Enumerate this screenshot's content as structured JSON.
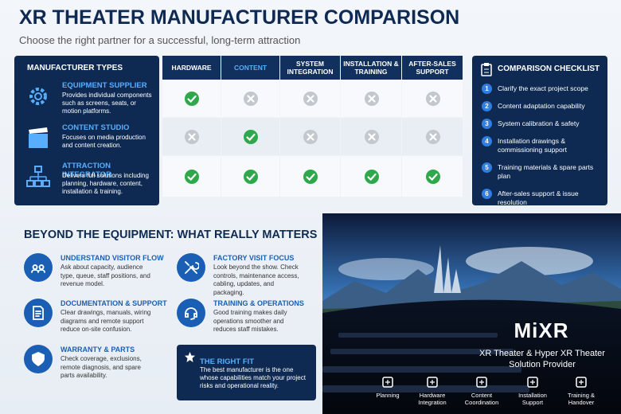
{
  "header": {
    "title": "XR THEATER MANUFACTURER COMPARISON",
    "subtitle": "Choose the right partner for a successful, long-term attraction"
  },
  "manufacturer_types": {
    "title": "MANUFACTURER TYPES",
    "items": [
      {
        "name": "EQUIPMENT SUPPLIER",
        "description": "Provides individual components such as screens, seats, or motion platforms."
      },
      {
        "name": "CONTENT STUDIO",
        "description": "Focuses on media production and content creation."
      },
      {
        "name": "ATTRACTION INTEGRATOR",
        "description": "Delivers full solutions including planning, hardware, content, installation & training."
      }
    ]
  },
  "table": {
    "columns": [
      "HARDWARE",
      "CONTENT",
      "SYSTEM INTEGRATION",
      "INSTALLATION & TRAINING",
      "AFTER-SALES SUPPORT"
    ],
    "rows": [
      [
        true,
        false,
        false,
        false,
        false
      ],
      [
        false,
        true,
        false,
        false,
        false
      ],
      [
        true,
        true,
        true,
        true,
        true
      ]
    ]
  },
  "checklist": {
    "title": "COMPARISON CHECKLIST",
    "items": [
      {
        "number": 1,
        "text": "Clarify the exact project scope"
      },
      {
        "number": 2,
        "text": "Content adaptation capability"
      },
      {
        "number": 3,
        "text": "System calibration & safety"
      },
      {
        "number": 4,
        "text": "Installation drawings & commissioning support"
      },
      {
        "number": 5,
        "text": "Training materials & spare parts plan"
      },
      {
        "number": 6,
        "text": "After-sales support & issue resolution"
      }
    ]
  },
  "matters": {
    "title": "BEYOND THE EQUIPMENT: WHAT REALLY MATTERS",
    "items": [
      {
        "title": "UNDERSTAND VISITOR FLOW",
        "text": "Ask about capacity, audience type, queue, staff positions, and revenue model."
      },
      {
        "title": "FACTORY VISIT FOCUS",
        "text": "Look beyond the show. Check controls, maintenance access, cabling, updates, and packaging."
      },
      {
        "title": "DOCUMENTATION & SUPPORT",
        "text": "Clear drawings, manuals, wiring diagrams and remote support reduce on-site confusion."
      },
      {
        "title": "TRAINING & OPERATIONS",
        "text": "Good training makes daily operations smoother and reduces staff mistakes."
      },
      {
        "title": "WARRANTY & PARTS",
        "text": "Check coverage, exclusions, remote diagnosis, and spare parts availability."
      }
    ],
    "highlight": {
      "title": "THE RIGHT FIT",
      "text": "The best manufacturer is the one whose capabilities match your project risks and operational reality."
    }
  },
  "promo": {
    "brand": "MiXR",
    "tagline": "XR Theater & Hyper XR Theater Solution Provider",
    "services": [
      "Planning",
      "Hardware Integration",
      "Content Coordination",
      "Installation Support",
      "Training & Handover"
    ]
  }
}
